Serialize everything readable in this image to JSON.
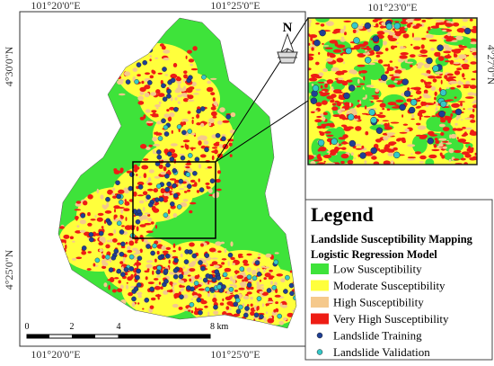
{
  "map": {
    "graticule": {
      "top": [
        "101°20'0\"E",
        "101°25'0\"E"
      ],
      "bottom": [
        "101°20'0\"E",
        "101°25'0\"E"
      ],
      "left": [
        "4°30'0\"N",
        "4°25'0\"N"
      ]
    },
    "north": "N",
    "scale_bar": [
      "0",
      "2",
      "4",
      "8 km"
    ],
    "inset": {
      "top": "101°23'0\"E",
      "right": "4°27'0\"N"
    }
  },
  "legend": {
    "title": "Legend",
    "subtitle": [
      "Landslide Susceptibility Mapping",
      "Logistic Regression Model"
    ],
    "items": [
      {
        "label": "Low Susceptibility",
        "color": "#3ee33a",
        "kind": "area"
      },
      {
        "label": "Moderate Susceptibility",
        "color": "#ffff3c",
        "kind": "area"
      },
      {
        "label": "High Susceptibility",
        "color": "#f5c98c",
        "kind": "area"
      },
      {
        "label": "Very High Susceptibility",
        "color": "#ee1c14",
        "kind": "area"
      },
      {
        "label": "Landslide Training",
        "color": "#1f3f95",
        "kind": "point"
      },
      {
        "label": "Landslide Validation",
        "color": "#35c8c8",
        "kind": "point"
      }
    ]
  }
}
